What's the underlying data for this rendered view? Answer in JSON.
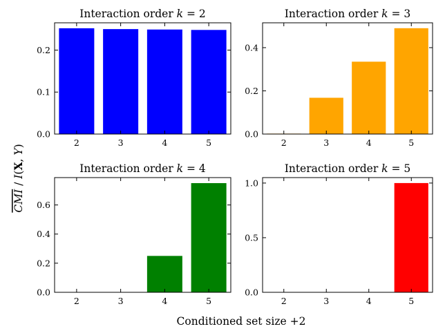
{
  "figure": {
    "xlabel": "Conditioned set size +2",
    "ylabel_parts": {
      "cmi": "CMI",
      "slash": " / ",
      "i": "I",
      "open": "(",
      "x": "X",
      "comma": ", ",
      "y": "Y",
      "close": ")"
    }
  },
  "chart_data": [
    {
      "type": "bar",
      "title": "Interaction order k = 2",
      "title_prefix": "Interaction order ",
      "title_k": "k",
      "title_eq": " = 2",
      "categories": [
        "2",
        "3",
        "4",
        "5"
      ],
      "values": [
        0.252,
        0.25,
        0.249,
        0.248
      ],
      "ylim": [
        0,
        0.265
      ],
      "yticks": [
        0.0,
        0.1,
        0.2
      ],
      "ytick_labels": [
        "0.0",
        "0.1",
        "0.2"
      ],
      "color": "#0000ff"
    },
    {
      "type": "bar",
      "title": "Interaction order k = 3",
      "title_prefix": "Interaction order ",
      "title_k": "k",
      "title_eq": " = 3",
      "categories": [
        "2",
        "3",
        "4",
        "5"
      ],
      "values": [
        0.002,
        0.168,
        0.335,
        0.49
      ],
      "ylim": [
        0,
        0.515
      ],
      "yticks": [
        0.0,
        0.2,
        0.4
      ],
      "ytick_labels": [
        "0.0",
        "0.2",
        "0.4"
      ],
      "color": "#ffa500"
    },
    {
      "type": "bar",
      "title": "Interaction order k = 4",
      "title_prefix": "Interaction order ",
      "title_k": "k",
      "title_eq": " = 4",
      "categories": [
        "2",
        "3",
        "4",
        "5"
      ],
      "values": [
        0.0,
        0.0,
        0.25,
        0.75
      ],
      "ylim": [
        0,
        0.788
      ],
      "yticks": [
        0.0,
        0.2,
        0.4,
        0.6
      ],
      "ytick_labels": [
        "0.0",
        "0.2",
        "0.4",
        "0.6"
      ],
      "color": "#008000"
    },
    {
      "type": "bar",
      "title": "Interaction order k = 5",
      "title_prefix": "Interaction order ",
      "title_k": "k",
      "title_eq": " = 5",
      "categories": [
        "2",
        "3",
        "4",
        "5"
      ],
      "values": [
        0.0,
        0.0,
        0.0,
        1.0
      ],
      "ylim": [
        0,
        1.05
      ],
      "yticks": [
        0.0,
        0.5,
        1.0
      ],
      "ytick_labels": [
        "0.0",
        "0.5",
        "1.0"
      ],
      "color": "#ff0000"
    }
  ]
}
